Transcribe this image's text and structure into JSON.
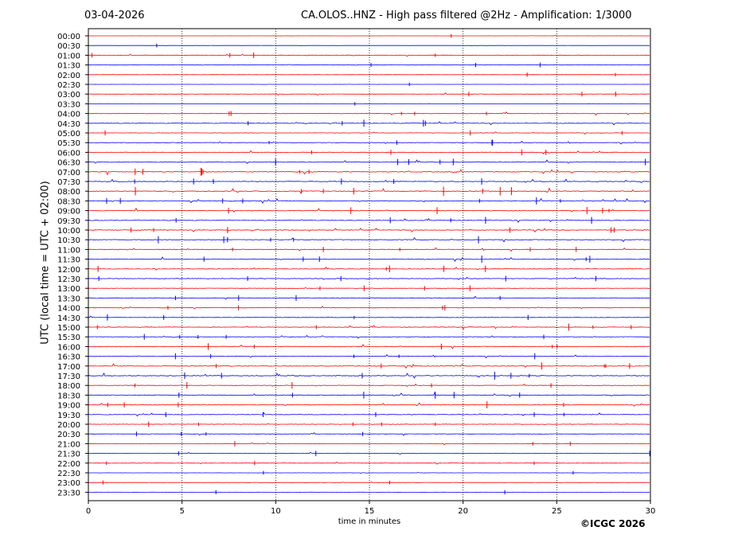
{
  "header": {
    "date": "03-04-2026",
    "title": "CA.OLOS..HNZ - High pass filtered @2Hz - Amplification: 1/3000"
  },
  "footer": {
    "copyright": "©ICGC 2026"
  },
  "chart_data": {
    "type": "line",
    "title": "CA.OLOS..HNZ - High pass filtered @2Hz - Amplification: 1/3000",
    "xlabel": "time in minutes",
    "ylabel": "UTC (local time = UTC + 02:00)",
    "xlim": [
      0,
      30
    ],
    "xticks": [
      "0",
      "5",
      "10",
      "15",
      "20",
      "25",
      "30"
    ],
    "vertical_gridlines_at": [
      5,
      10,
      15,
      20,
      25
    ],
    "grid": "vertical dotted",
    "row_labels": [
      "00:00",
      "00:30",
      "01:00",
      "01:30",
      "02:00",
      "02:30",
      "03:00",
      "03:30",
      "04:00",
      "04:30",
      "05:00",
      "05:30",
      "06:00",
      "06:30",
      "07:00",
      "07:30",
      "08:00",
      "08:30",
      "09:00",
      "09:30",
      "10:00",
      "10:30",
      "11:00",
      "11:30",
      "12:00",
      "12:30",
      "13:00",
      "13:30",
      "14:00",
      "14:30",
      "15:00",
      "15:30",
      "16:00",
      "16:30",
      "17:00",
      "17:30",
      "18:00",
      "18:30",
      "19:00",
      "19:30",
      "20:00",
      "20:30",
      "21:00",
      "21:30",
      "22:00",
      "22:30",
      "23:00",
      "23:30"
    ],
    "trace_colors": [
      "#ff0000",
      "#0000ff"
    ],
    "trace_activity": [
      0.1,
      0.1,
      0.35,
      0.25,
      0.15,
      0.1,
      0.3,
      0.1,
      0.45,
      0.5,
      0.3,
      0.4,
      0.4,
      0.55,
      0.7,
      0.6,
      0.75,
      0.65,
      0.6,
      0.5,
      0.6,
      0.55,
      0.5,
      0.55,
      0.45,
      0.45,
      0.35,
      0.4,
      0.35,
      0.4,
      0.5,
      0.45,
      0.5,
      0.45,
      0.55,
      0.6,
      0.45,
      0.6,
      0.5,
      0.45,
      0.45,
      0.35,
      0.3,
      0.3,
      0.3,
      0.15,
      0.15,
      0.15
    ]
  }
}
